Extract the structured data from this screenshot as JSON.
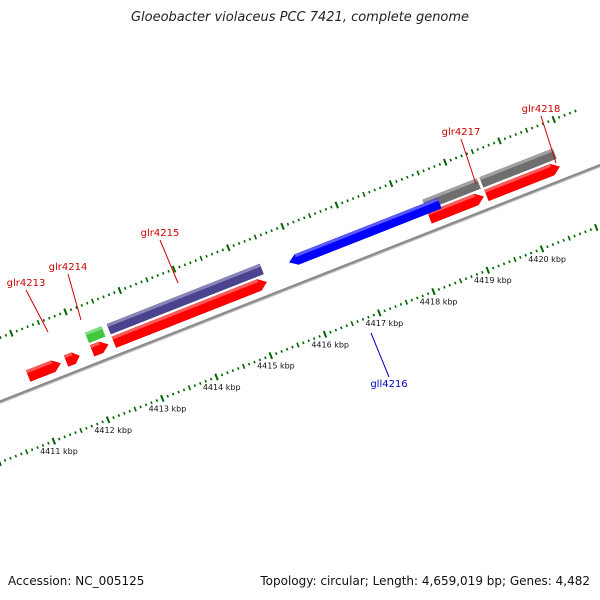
{
  "title": "Gloeobacter violaceus PCC 7421, complete genome",
  "footer": {
    "accession": "Accession: NC_005125",
    "stats": "Topology: circular; Length: 4,659,019 bp; Genes: 4,482"
  },
  "colors": {
    "forward_gene": "#ff0000",
    "reverse_gene": "#0000ff",
    "label_forward": "#cc0000",
    "label_reverse": "#0000bb",
    "rrna_like": "#3ec83e",
    "trna_like": "#4a4490",
    "pseudo": "#6e6e6e",
    "backbone": "#8a8a8a",
    "ticks": "#006400"
  },
  "scale": {
    "unit": "kbp",
    "labels": [
      "4411 kbp",
      "4412 kbp",
      "4413 kbp",
      "4414 kbp",
      "4415 kbp",
      "4416 kbp",
      "4417 kbp",
      "4418 kbp",
      "4419 kbp",
      "4420 kbp"
    ]
  },
  "genes": [
    {
      "name": "glr4213",
      "strand": "+",
      "start_kbp": 4411.0,
      "end_kbp": 4411.6,
      "color": "#ff0000"
    },
    {
      "name": "",
      "strand": "+",
      "start_kbp": 4411.7,
      "end_kbp": 4411.95,
      "color": "#ff0000"
    },
    {
      "name": "",
      "strand": "+",
      "start_kbp": 4412.18,
      "end_kbp": 4412.48,
      "color": "#ff0000"
    },
    {
      "name": "glr4214",
      "strand": "+",
      "start_kbp": 4412.18,
      "end_kbp": 4412.48,
      "color": "#3ec83e",
      "feature_row": true
    },
    {
      "name": "",
      "strand": "+",
      "start_kbp": 4412.58,
      "end_kbp": 4415.4,
      "color": "#ff0000"
    },
    {
      "name": "glr4215",
      "strand": "+",
      "start_kbp": 4412.58,
      "end_kbp": 4415.4,
      "color": "#4a4490",
      "feature_row": true
    },
    {
      "name": "gll4216",
      "strand": "-",
      "start_kbp": 4415.88,
      "end_kbp": 4418.65,
      "color": "#0000ff"
    },
    {
      "name": "glr4217",
      "strand": "+",
      "start_kbp": 4418.4,
      "end_kbp": 4419.4,
      "color": "#ff0000"
    },
    {
      "name": "",
      "strand": "+",
      "start_kbp": 4418.4,
      "end_kbp": 4419.4,
      "color": "#6e6e6e",
      "feature_row": true
    },
    {
      "name": "",
      "strand": "+",
      "start_kbp": 4419.45,
      "end_kbp": 4420.8,
      "color": "#ff0000"
    },
    {
      "name": "glr4218",
      "strand": "+",
      "start_kbp": 4419.45,
      "end_kbp": 4420.8,
      "color": "#6e6e6e",
      "feature_row": true
    }
  ]
}
